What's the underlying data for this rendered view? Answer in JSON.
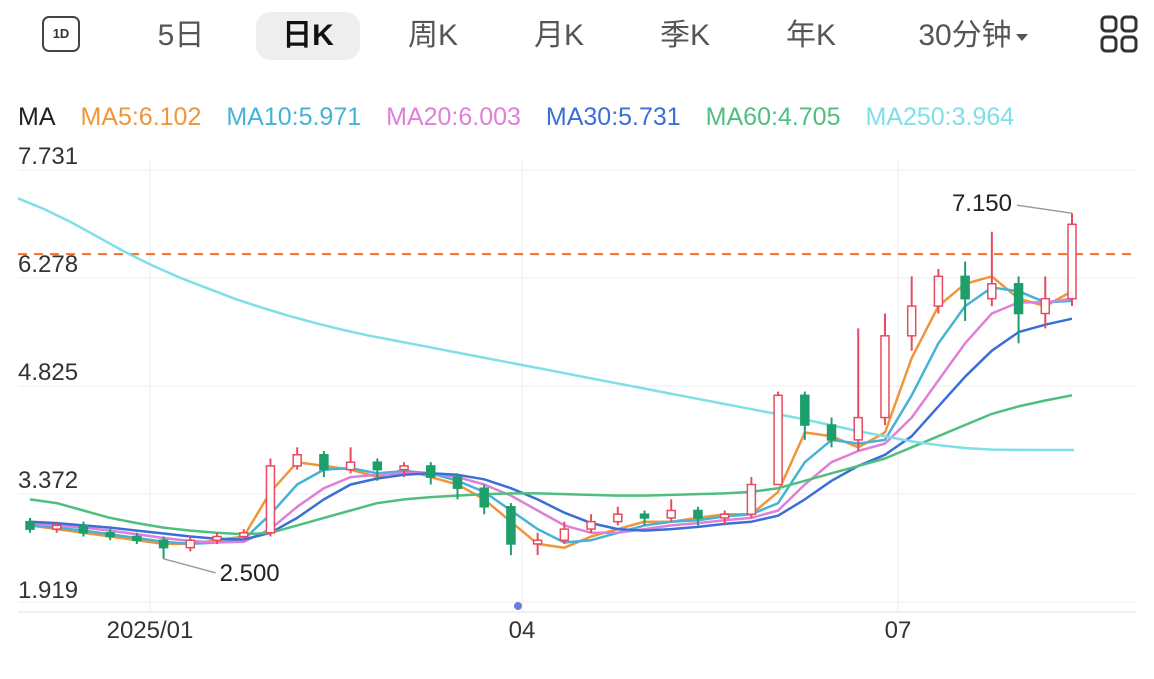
{
  "toolbar": {
    "period_badge": "1D",
    "tabs": [
      "5日",
      "日K",
      "周K",
      "月K",
      "季K",
      "年K",
      "30分钟"
    ],
    "active_tab": "日K",
    "grid_icon": "grid-icon"
  },
  "indicators": {
    "prefix": "MA",
    "items": [
      {
        "label": "MA5:6.102",
        "color": "#f0953a"
      },
      {
        "label": "MA10:5.971",
        "color": "#45b3d6"
      },
      {
        "label": "MA20:6.003",
        "color": "#e07fd8"
      },
      {
        "label": "MA30:5.731",
        "color": "#3a6fd8"
      },
      {
        "label": "MA60:4.705",
        "color": "#4fbf7f"
      },
      {
        "label": "MA250:3.964",
        "color": "#7ee0e6"
      }
    ]
  },
  "chart_data": {
    "type": "candlestick",
    "y_ticks": [
      "7.731",
      "6.278",
      "4.825",
      "3.372",
      "1.919"
    ],
    "ylim": [
      1.919,
      7.731
    ],
    "x_ticks": [
      "2025/01",
      "04",
      "07"
    ],
    "dashed_level": 6.6,
    "annotations": {
      "high": "7.150",
      "low": "2.500"
    },
    "up_color": "#e84a5f",
    "down_color": "#1e9e6a",
    "ma_lines": {
      "MA5": [
        2.95,
        2.9,
        2.85,
        2.8,
        2.75,
        2.7,
        2.7,
        2.75,
        2.8,
        3.4,
        3.8,
        3.75,
        3.7,
        3.6,
        3.7,
        3.6,
        3.5,
        3.3,
        3.0,
        2.7,
        2.65,
        2.8,
        2.9,
        3.0,
        3.0,
        3.05,
        3.1,
        3.1,
        3.4,
        4.2,
        4.15,
        4.0,
        4.2,
        5.2,
        5.9,
        6.2,
        6.3,
        6.0,
        5.9,
        6.1
      ],
      "MA10": [
        2.95,
        2.92,
        2.88,
        2.83,
        2.78,
        2.73,
        2.7,
        2.72,
        2.76,
        3.1,
        3.5,
        3.7,
        3.72,
        3.65,
        3.68,
        3.65,
        3.55,
        3.4,
        3.15,
        2.9,
        2.72,
        2.75,
        2.85,
        2.95,
        3.0,
        3.02,
        3.07,
        3.1,
        3.25,
        3.8,
        4.1,
        4.05,
        4.1,
        4.7,
        5.4,
        5.9,
        6.15,
        6.1,
        5.95,
        5.97
      ],
      "MA20": [
        2.98,
        2.95,
        2.92,
        2.88,
        2.83,
        2.78,
        2.74,
        2.72,
        2.73,
        2.9,
        3.2,
        3.45,
        3.6,
        3.63,
        3.65,
        3.65,
        3.6,
        3.5,
        3.35,
        3.15,
        2.95,
        2.85,
        2.85,
        2.9,
        2.95,
        2.98,
        3.02,
        3.05,
        3.15,
        3.5,
        3.8,
        3.95,
        4.05,
        4.4,
        4.9,
        5.4,
        5.8,
        5.95,
        5.95,
        6.0
      ],
      "MA30": [
        3.0,
        2.98,
        2.95,
        2.92,
        2.88,
        2.84,
        2.8,
        2.77,
        2.76,
        2.85,
        3.05,
        3.3,
        3.5,
        3.58,
        3.63,
        3.65,
        3.63,
        3.57,
        3.45,
        3.3,
        3.12,
        2.98,
        2.9,
        2.88,
        2.9,
        2.93,
        2.97,
        3.0,
        3.08,
        3.3,
        3.55,
        3.75,
        3.9,
        4.15,
        4.55,
        4.95,
        5.3,
        5.55,
        5.65,
        5.73
      ],
      "MA60": [
        3.3,
        3.25,
        3.15,
        3.05,
        2.98,
        2.92,
        2.88,
        2.85,
        2.83,
        2.85,
        2.95,
        3.05,
        3.15,
        3.25,
        3.3,
        3.33,
        3.35,
        3.37,
        3.38,
        3.38,
        3.37,
        3.36,
        3.35,
        3.35,
        3.36,
        3.37,
        3.38,
        3.4,
        3.45,
        3.55,
        3.65,
        3.75,
        3.85,
        4.0,
        4.15,
        4.3,
        4.45,
        4.55,
        4.63,
        4.7
      ],
      "MA250": [
        7.35,
        7.2,
        7.02,
        6.82,
        6.62,
        6.44,
        6.28,
        6.14,
        6.0,
        5.88,
        5.77,
        5.67,
        5.58,
        5.5,
        5.43,
        5.36,
        5.29,
        5.22,
        5.15,
        5.08,
        5.01,
        4.94,
        4.87,
        4.8,
        4.73,
        4.66,
        4.59,
        4.52,
        4.45,
        4.38,
        4.3,
        4.22,
        4.15,
        4.08,
        4.03,
        3.99,
        3.97,
        3.965,
        3.964,
        3.964
      ]
    },
    "candles": [
      [
        3.0,
        2.9,
        3.05,
        2.85
      ],
      [
        2.9,
        2.95,
        3.0,
        2.85
      ],
      [
        2.95,
        2.85,
        3.0,
        2.8
      ],
      [
        2.85,
        2.8,
        2.9,
        2.75
      ],
      [
        2.8,
        2.75,
        2.85,
        2.7
      ],
      [
        2.75,
        2.65,
        2.8,
        2.5
      ],
      [
        2.65,
        2.75,
        2.8,
        2.6
      ],
      [
        2.75,
        2.8,
        2.85,
        2.7
      ],
      [
        2.8,
        2.85,
        2.9,
        2.75
      ],
      [
        2.85,
        3.75,
        3.85,
        2.8
      ],
      [
        3.75,
        3.9,
        4.0,
        3.7
      ],
      [
        3.9,
        3.7,
        3.95,
        3.6
      ],
      [
        3.7,
        3.8,
        4.0,
        3.65
      ],
      [
        3.8,
        3.7,
        3.85,
        3.55
      ],
      [
        3.7,
        3.75,
        3.8,
        3.6
      ],
      [
        3.75,
        3.6,
        3.8,
        3.5
      ],
      [
        3.6,
        3.45,
        3.65,
        3.3
      ],
      [
        3.45,
        3.2,
        3.5,
        3.1
      ],
      [
        3.2,
        2.7,
        3.25,
        2.55
      ],
      [
        2.7,
        2.75,
        2.85,
        2.55
      ],
      [
        2.75,
        2.9,
        3.0,
        2.7
      ],
      [
        2.9,
        3.0,
        3.1,
        2.85
      ],
      [
        3.0,
        3.1,
        3.2,
        2.95
      ],
      [
        3.1,
        3.05,
        3.15,
        2.95
      ],
      [
        3.05,
        3.15,
        3.3,
        3.0
      ],
      [
        3.15,
        3.05,
        3.2,
        2.95
      ],
      [
        3.05,
        3.1,
        3.15,
        2.95
      ],
      [
        3.1,
        3.5,
        3.6,
        3.05
      ],
      [
        3.5,
        4.7,
        4.75,
        3.5
      ],
      [
        4.7,
        4.3,
        4.75,
        4.1
      ],
      [
        4.3,
        4.1,
        4.4,
        4.0
      ],
      [
        4.1,
        4.4,
        5.6,
        3.95
      ],
      [
        4.4,
        5.5,
        5.8,
        4.3
      ],
      [
        5.5,
        5.9,
        6.3,
        5.3
      ],
      [
        5.9,
        6.3,
        6.4,
        5.8
      ],
      [
        6.3,
        6.0,
        6.5,
        5.7
      ],
      [
        6.0,
        6.2,
        6.9,
        5.9
      ],
      [
        6.2,
        5.8,
        6.3,
        5.4
      ],
      [
        5.8,
        6.0,
        6.3,
        5.6
      ],
      [
        6.0,
        7.0,
        7.15,
        5.9
      ]
    ]
  }
}
